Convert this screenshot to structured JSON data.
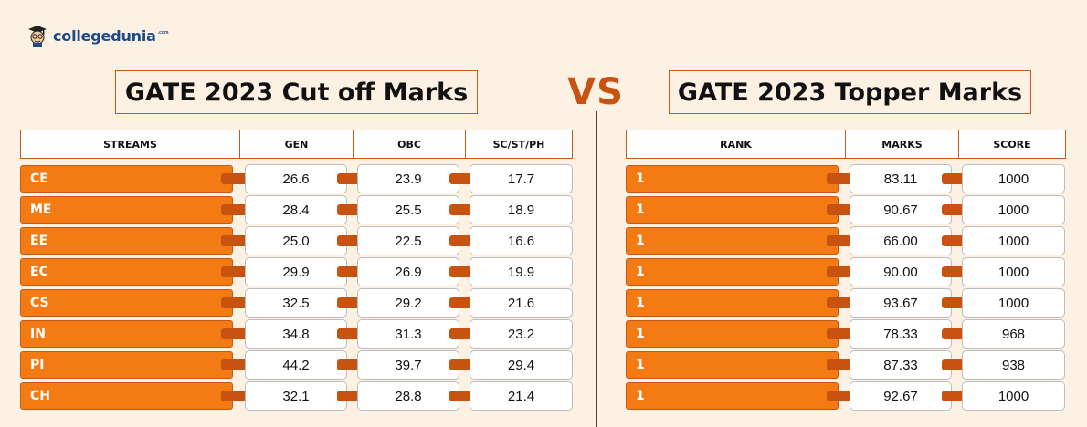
{
  "brand": {
    "name": "collegedunia",
    "suffix": ".com"
  },
  "left_title": "GATE 2023 Cut off Marks",
  "vs_label": "VS",
  "right_title": "GATE 2023 Topper Marks",
  "cutoff_table": {
    "headers": [
      "STREAMS",
      "GEN",
      "OBC",
      "SC/ST/PH"
    ],
    "rows": [
      {
        "stream": "CE",
        "gen": "26.6",
        "obc": "23.9",
        "sc": "17.7"
      },
      {
        "stream": "ME",
        "gen": "28.4",
        "obc": "25.5",
        "sc": "18.9"
      },
      {
        "stream": "EE",
        "gen": "25.0",
        "obc": "22.5",
        "sc": "16.6"
      },
      {
        "stream": "EC",
        "gen": "29.9",
        "obc": "26.9",
        "sc": "19.9"
      },
      {
        "stream": "CS",
        "gen": "32.5",
        "obc": "29.2",
        "sc": "21.6"
      },
      {
        "stream": "IN",
        "gen": "34.8",
        "obc": "31.3",
        "sc": "23.2"
      },
      {
        "stream": "PI",
        "gen": "44.2",
        "obc": "39.7",
        "sc": "29.4"
      },
      {
        "stream": "CH",
        "gen": "32.1",
        "obc": "28.8",
        "sc": "21.4"
      }
    ]
  },
  "topper_table": {
    "headers": [
      "RANK",
      "MARKS",
      "SCORE"
    ],
    "rows": [
      {
        "rank": "1",
        "marks": "83.11",
        "score": "1000"
      },
      {
        "rank": "1",
        "marks": "90.67",
        "score": "1000"
      },
      {
        "rank": "1",
        "marks": "66.00",
        "score": "1000"
      },
      {
        "rank": "1",
        "marks": "90.00",
        "score": "1000"
      },
      {
        "rank": "1",
        "marks": "93.67",
        "score": "1000"
      },
      {
        "rank": "1",
        "marks": "78.33",
        "score": "968"
      },
      {
        "rank": "1",
        "marks": "87.33",
        "score": "938"
      },
      {
        "rank": "1",
        "marks": "92.67",
        "score": "1000"
      }
    ]
  },
  "colors": {
    "background": "#fdf1e4",
    "accent_orange": "#f47b14",
    "connector": "#c8520f",
    "border": "#c65a14",
    "brand_blue": "#1c4a8a"
  },
  "icons": {
    "logo": "graduate-mascot-icon"
  }
}
